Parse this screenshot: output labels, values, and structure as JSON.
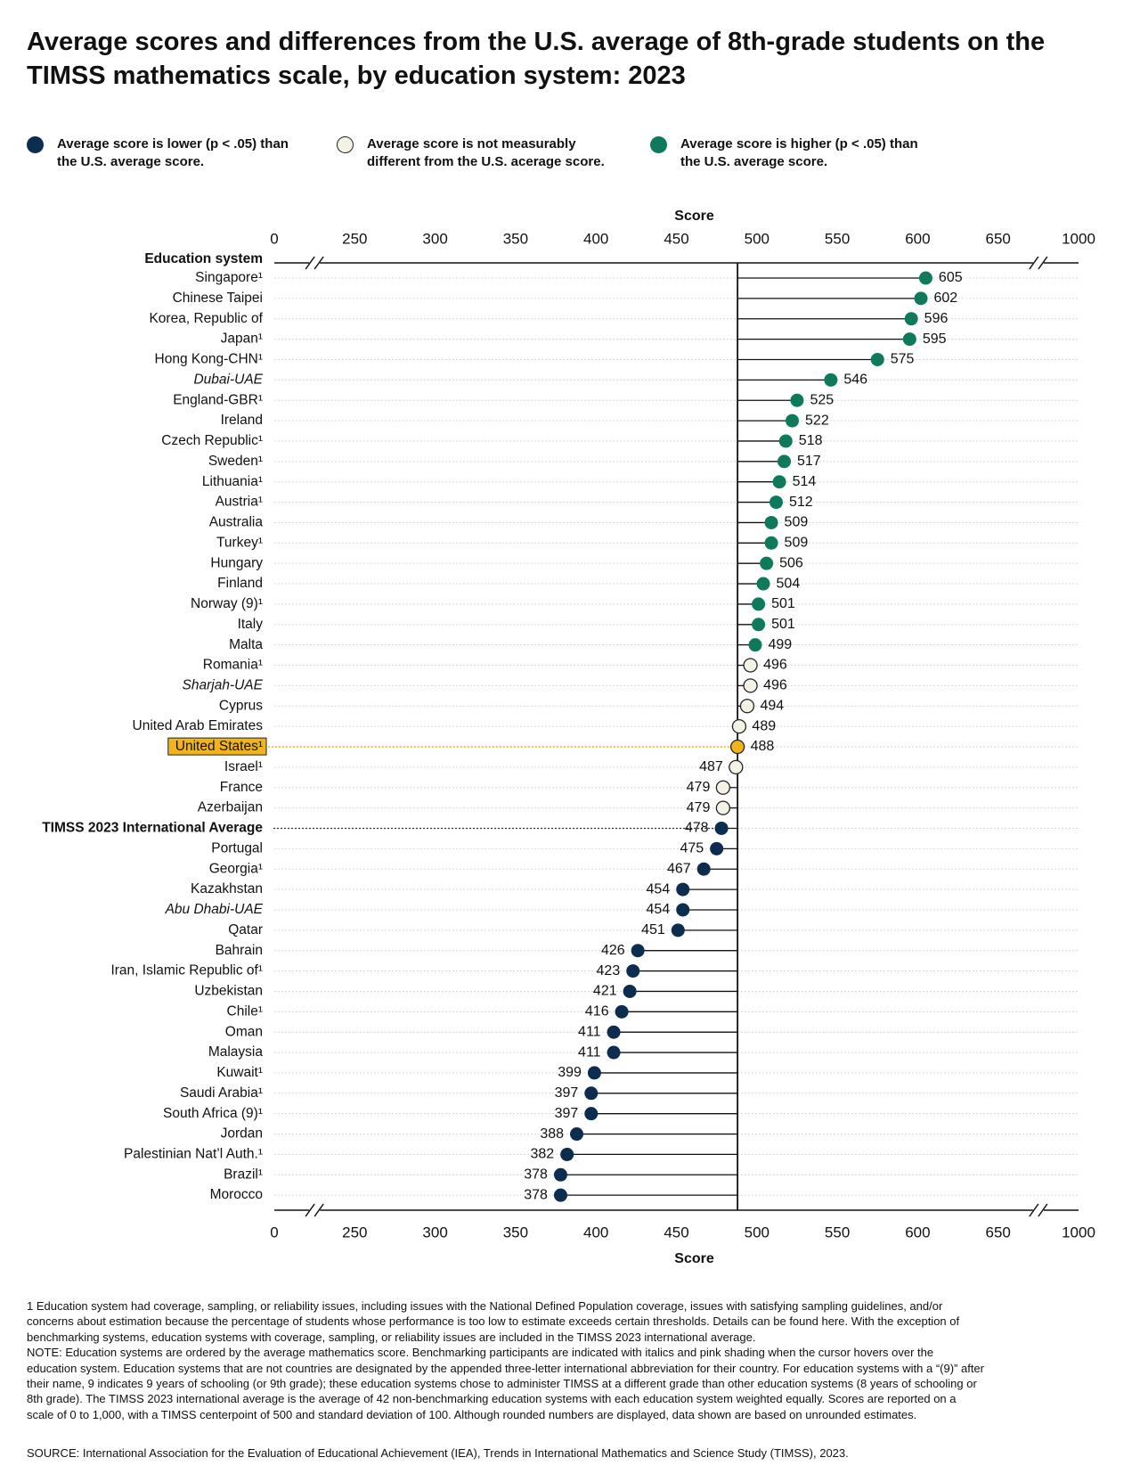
{
  "chart_data": {
    "type": "lollipop",
    "title": "Average scores and differences from the U.S. average of 8th-grade students on the TIMSS mathematics scale, by education system: 2023",
    "x_label": "Score",
    "category_header": "Education system",
    "categories": [
      "Singapore¹",
      "Chinese Taipei",
      "Korea, Republic of",
      "Japan¹",
      "Hong Kong-CHN¹",
      "Dubai-UAE",
      "England-GBR¹",
      "Ireland",
      "Czech Republic¹",
      "Sweden¹",
      "Lithuania¹",
      "Austria¹",
      "Australia",
      "Turkey¹",
      "Hungary",
      "Finland",
      "Norway (9)¹",
      "Italy",
      "Malta",
      "Romania¹",
      "Sharjah-UAE",
      "Cyprus",
      "United Arab Emirates",
      "United States¹",
      "Israel¹",
      "France",
      "Azerbaijan",
      "TIMSS 2023 International Average",
      "Portugal",
      "Georgia¹",
      "Kazakhstan",
      "Abu Dhabi-UAE",
      "Qatar",
      "Bahrain",
      "Iran, Islamic Republic of¹",
      "Uzbekistan",
      "Chile¹",
      "Oman",
      "Malaysia",
      "Kuwait¹",
      "Saudi Arabia¹",
      "South Africa (9)¹",
      "Jordan",
      "Palestinian Nat’l Auth.¹",
      "Brazil¹",
      "Morocco"
    ],
    "series": [
      {
        "name": "Average score is lower (p < .05) than the U.S. average score.",
        "color": "#0c2d50",
        "values": [
          null,
          null,
          null,
          null,
          null,
          null,
          null,
          null,
          null,
          null,
          null,
          null,
          null,
          null,
          null,
          null,
          null,
          null,
          null,
          null,
          null,
          null,
          null,
          null,
          null,
          null,
          null,
          478,
          475,
          467,
          454,
          454,
          451,
          426,
          423,
          421,
          416,
          411,
          411,
          399,
          397,
          397,
          388,
          382,
          378,
          378
        ]
      },
      {
        "name": "Average score is not measurably different from the U.S. acerage score.",
        "color": "#f4f2e4",
        "edge_color": "#222222",
        "values": [
          null,
          null,
          null,
          null,
          null,
          null,
          null,
          null,
          null,
          null,
          null,
          null,
          null,
          null,
          null,
          null,
          null,
          null,
          null,
          496,
          496,
          494,
          489,
          null,
          487,
          479,
          479,
          null,
          null,
          null,
          null,
          null,
          null,
          null,
          null,
          null,
          null,
          null,
          null,
          null,
          null,
          null,
          null,
          null,
          null,
          null
        ]
      },
      {
        "name": "Average score is higher (p < .05) than the U.S. average score.",
        "color": "#0e7a5b",
        "values": [
          605,
          602,
          596,
          595,
          575,
          546,
          525,
          522,
          518,
          517,
          514,
          512,
          509,
          509,
          506,
          504,
          501,
          501,
          499,
          null,
          null,
          null,
          null,
          null,
          null,
          null,
          null,
          null,
          null,
          null,
          null,
          null,
          null,
          null,
          null,
          null,
          null,
          null,
          null,
          null,
          null,
          null,
          null,
          null,
          null,
          null
        ]
      }
    ],
    "highlight": {
      "index": 23,
      "value": 488,
      "color": "#f2b41c"
    },
    "bold_index": 27,
    "italic_indices": [
      5,
      20,
      31
    ],
    "xlim": [
      0,
      1000
    ],
    "xticks": [
      0,
      250,
      300,
      350,
      400,
      450,
      500,
      550,
      600,
      650,
      1000
    ],
    "axis_breaks": [
      [
        0,
        250
      ],
      [
        650,
        1000
      ]
    ],
    "footnotes": [
      "1 Education system had coverage, sampling, or reliability issues, including issues with the National Defined Population coverage, issues with satisfying sampling guidelines, and/or concerns about estimation because the percentage of students whose performance is too low to estimate exceeds certain thresholds. Details can be found here. With the exception of benchmarking systems, education systems with coverage, sampling, or reliability issues are included in the TIMSS 2023 international average.",
      "NOTE: Education systems are ordered by the average mathematics score. Benchmarking participants are indicated with italics and pink shading when the cursor hovers over the education system. Education systems that are not countries are designated by the appended three-letter international abbreviation for their country. For education systems with a “(9)” after their name, 9 indicates 9 years of schooling (or 9th grade); these education systems chose to administer TIMSS at a different grade than other education systems (8 years of schooling or 8th grade). The TIMSS 2023 international average is the average of 42 non-benchmarking education systems with each education system weighted equally. Scores are reported on a scale of 0 to 1,000, with a TIMSS centerpoint of 500 and standard deviation of 100. Although rounded numbers are displayed, data shown are based on unrounded estimates."
    ],
    "source": "SOURCE: International Association for the Evaluation of Educational Achievement (IEA), Trends in International Mathematics and Science Study (TIMSS), 2023."
  }
}
